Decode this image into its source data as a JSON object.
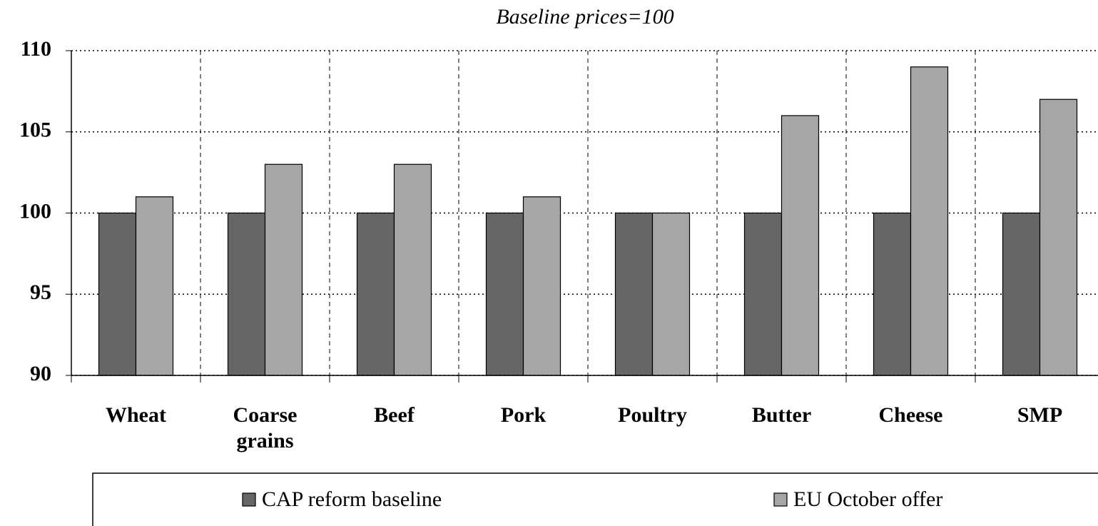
{
  "chart_data": {
    "type": "bar",
    "title": "Baseline prices=100",
    "categories": [
      "Wheat",
      "Coarse grains",
      "Beef",
      "Pork",
      "Poultry",
      "Butter",
      "Cheese",
      "SMP"
    ],
    "series": [
      {
        "name": "CAP reform baseline",
        "color": "#666666",
        "values": [
          100,
          100,
          100,
          100,
          100,
          100,
          100,
          100
        ]
      },
      {
        "name": "EU October offer",
        "color": "#a6a6a6",
        "values": [
          101,
          103,
          103,
          101,
          100,
          106,
          109,
          107
        ]
      }
    ],
    "ylim": [
      90,
      110
    ],
    "yticks": [
      90,
      95,
      100,
      105,
      110
    ],
    "grid": true
  }
}
